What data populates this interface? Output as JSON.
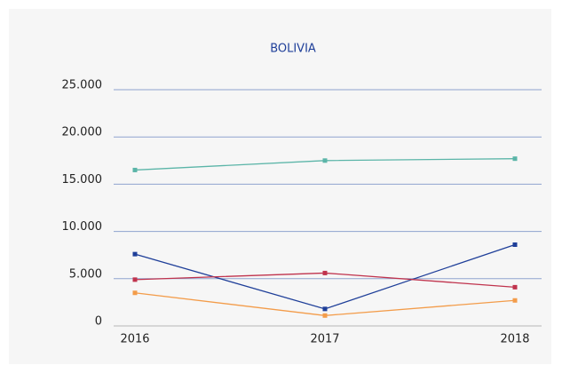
{
  "chart_data": {
    "type": "line",
    "title": "BOLIVIA",
    "categories": [
      "2016",
      "2017",
      "2018"
    ],
    "series": [
      {
        "color": "#5bb5a8",
        "values": [
          16500,
          17500,
          17700
        ]
      },
      {
        "color": "#1f3f99",
        "values": [
          7600,
          1800,
          8600
        ]
      },
      {
        "color": "#c0334d",
        "values": [
          4900,
          5600,
          4100
        ]
      },
      {
        "color": "#f39c4a",
        "values": [
          3500,
          1100,
          2700
        ]
      }
    ],
    "ylim": [
      0,
      25000
    ],
    "yticks": [
      0,
      {
        "value": 5000,
        "label": "5.000"
      },
      {
        "value": 10000,
        "label": "10.000"
      },
      {
        "value": 15000,
        "label": "15.000"
      },
      {
        "value": 20000,
        "label": "20.000"
      },
      {
        "value": 25000,
        "label": "25.000"
      }
    ],
    "grid": true
  }
}
